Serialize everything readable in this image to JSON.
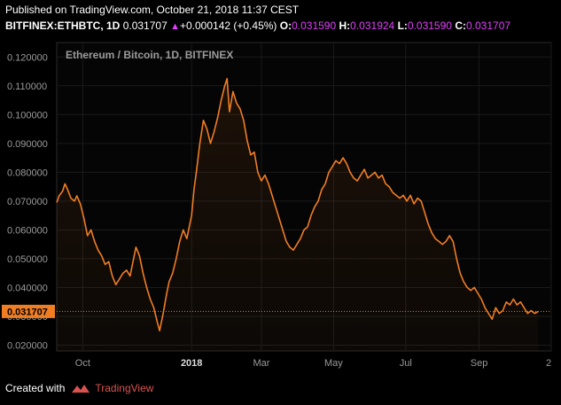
{
  "header": {
    "published": "Published on TradingView.com, October 21, 2018 11:37 CEST",
    "symbol": "BITFINEX:ETHBTC, 1D",
    "last": "0.031707",
    "change": "+0.000142 (+0.45%)",
    "o_label": "O:",
    "o_value": "0.031590",
    "h_label": "H:",
    "h_value": "0.031924",
    "l_label": "L:",
    "l_value": "0.031590",
    "c_label": "C:",
    "c_value": "0.031707"
  },
  "footer": {
    "created_with": "Created with",
    "brand": "TradingView"
  },
  "colors": {
    "line": "#f07d22",
    "accent": "#e040fb",
    "price_tag": "#f07d22",
    "grid": "#1a1a1a",
    "logo": "#d9534f"
  },
  "chart_data": {
    "type": "line",
    "title": "Ethereum / Bitcoin, 1D, BITFINEX",
    "current_price_label": "0.031707",
    "ylim": [
      0.018,
      0.125
    ],
    "y_ticks": [
      "0.020000",
      "0.030000",
      "0.040000",
      "0.050000",
      "0.060000",
      "0.070000",
      "0.080000",
      "0.090000",
      "0.100000",
      "0.110000",
      "0.120000"
    ],
    "x_ticks": [
      {
        "label": "Oct",
        "x": "2017-10-01"
      },
      {
        "label": "2018",
        "x": "2018-01-01",
        "bold": true
      },
      {
        "label": "Mar",
        "x": "2018-03-01"
      },
      {
        "label": "May",
        "x": "2018-05-01"
      },
      {
        "label": "Jul",
        "x": "2018-07-01"
      },
      {
        "label": "Sep",
        "x": "2018-09-01"
      },
      {
        "label": "2",
        "x": "2018-11-01"
      }
    ],
    "xlim": [
      "2017-09-09",
      "2018-11-01"
    ],
    "series": [
      {
        "points": [
          [
            "2017-09-09",
            0.0695
          ],
          [
            "2017-09-11",
            0.0718
          ],
          [
            "2017-09-14",
            0.0735
          ],
          [
            "2017-09-16",
            0.076
          ],
          [
            "2017-09-18",
            0.0742
          ],
          [
            "2017-09-21",
            0.071
          ],
          [
            "2017-09-24",
            0.07
          ],
          [
            "2017-09-26",
            0.0718
          ],
          [
            "2017-09-29",
            0.069
          ],
          [
            "2017-10-02",
            0.064
          ],
          [
            "2017-10-05",
            0.058
          ],
          [
            "2017-10-08",
            0.06
          ],
          [
            "2017-10-11",
            0.056
          ],
          [
            "2017-10-14",
            0.053
          ],
          [
            "2017-10-17",
            0.051
          ],
          [
            "2017-10-20",
            0.048
          ],
          [
            "2017-10-23",
            0.049
          ],
          [
            "2017-10-26",
            0.044
          ],
          [
            "2017-10-29",
            0.041
          ],
          [
            "2017-11-01",
            0.043
          ],
          [
            "2017-11-04",
            0.045
          ],
          [
            "2017-11-07",
            0.046
          ],
          [
            "2017-11-10",
            0.044
          ],
          [
            "2017-11-12",
            0.048
          ],
          [
            "2017-11-15",
            0.054
          ],
          [
            "2017-11-18",
            0.051
          ],
          [
            "2017-11-21",
            0.045
          ],
          [
            "2017-11-24",
            0.04
          ],
          [
            "2017-11-27",
            0.036
          ],
          [
            "2017-11-30",
            0.033
          ],
          [
            "2017-12-03",
            0.028
          ],
          [
            "2017-12-05",
            0.025
          ],
          [
            "2017-12-08",
            0.031
          ],
          [
            "2017-12-11",
            0.038
          ],
          [
            "2017-12-13",
            0.042
          ],
          [
            "2017-12-16",
            0.045
          ],
          [
            "2017-12-19",
            0.05
          ],
          [
            "2017-12-22",
            0.056
          ],
          [
            "2017-12-25",
            0.06
          ],
          [
            "2017-12-28",
            0.057
          ],
          [
            "2018-01-01",
            0.065
          ],
          [
            "2018-01-03",
            0.074
          ],
          [
            "2018-01-05",
            0.08
          ],
          [
            "2018-01-08",
            0.09
          ],
          [
            "2018-01-11",
            0.098
          ],
          [
            "2018-01-14",
            0.095
          ],
          [
            "2018-01-17",
            0.09
          ],
          [
            "2018-01-20",
            0.094
          ],
          [
            "2018-01-23",
            0.099
          ],
          [
            "2018-01-26",
            0.105
          ],
          [
            "2018-01-29",
            0.11
          ],
          [
            "2018-01-31",
            0.1125
          ],
          [
            "2018-02-02",
            0.101
          ],
          [
            "2018-02-05",
            0.108
          ],
          [
            "2018-02-08",
            0.104
          ],
          [
            "2018-02-11",
            0.102
          ],
          [
            "2018-02-14",
            0.098
          ],
          [
            "2018-02-17",
            0.091
          ],
          [
            "2018-02-20",
            0.086
          ],
          [
            "2018-02-23",
            0.087
          ],
          [
            "2018-02-26",
            0.08
          ],
          [
            "2018-03-01",
            0.077
          ],
          [
            "2018-03-04",
            0.079
          ],
          [
            "2018-03-07",
            0.076
          ],
          [
            "2018-03-10",
            0.072
          ],
          [
            "2018-03-13",
            0.068
          ],
          [
            "2018-03-16",
            0.064
          ],
          [
            "2018-03-19",
            0.06
          ],
          [
            "2018-03-22",
            0.056
          ],
          [
            "2018-03-25",
            0.054
          ],
          [
            "2018-03-28",
            0.053
          ],
          [
            "2018-03-31",
            0.055
          ],
          [
            "2018-04-03",
            0.057
          ],
          [
            "2018-04-06",
            0.06
          ],
          [
            "2018-04-09",
            0.061
          ],
          [
            "2018-04-12",
            0.065
          ],
          [
            "2018-04-15",
            0.068
          ],
          [
            "2018-04-18",
            0.07
          ],
          [
            "2018-04-21",
            0.074
          ],
          [
            "2018-04-24",
            0.076
          ],
          [
            "2018-04-27",
            0.08
          ],
          [
            "2018-04-30",
            0.082
          ],
          [
            "2018-05-03",
            0.084
          ],
          [
            "2018-05-06",
            0.083
          ],
          [
            "2018-05-09",
            0.085
          ],
          [
            "2018-05-12",
            0.083
          ],
          [
            "2018-05-15",
            0.08
          ],
          [
            "2018-05-18",
            0.078
          ],
          [
            "2018-05-21",
            0.077
          ],
          [
            "2018-05-24",
            0.079
          ],
          [
            "2018-05-27",
            0.081
          ],
          [
            "2018-05-30",
            0.078
          ],
          [
            "2018-06-02",
            0.079
          ],
          [
            "2018-06-05",
            0.08
          ],
          [
            "2018-06-08",
            0.078
          ],
          [
            "2018-06-11",
            0.079
          ],
          [
            "2018-06-14",
            0.076
          ],
          [
            "2018-06-17",
            0.075
          ],
          [
            "2018-06-20",
            0.073
          ],
          [
            "2018-06-23",
            0.072
          ],
          [
            "2018-06-26",
            0.071
          ],
          [
            "2018-06-29",
            0.072
          ],
          [
            "2018-07-02",
            0.07
          ],
          [
            "2018-07-05",
            0.072
          ],
          [
            "2018-07-08",
            0.069
          ],
          [
            "2018-07-11",
            0.071
          ],
          [
            "2018-07-14",
            0.07
          ],
          [
            "2018-07-17",
            0.066
          ],
          [
            "2018-07-20",
            0.062
          ],
          [
            "2018-07-23",
            0.059
          ],
          [
            "2018-07-26",
            0.057
          ],
          [
            "2018-07-29",
            0.056
          ],
          [
            "2018-08-01",
            0.055
          ],
          [
            "2018-08-04",
            0.056
          ],
          [
            "2018-08-07",
            0.058
          ],
          [
            "2018-08-10",
            0.056
          ],
          [
            "2018-08-13",
            0.05
          ],
          [
            "2018-08-16",
            0.045
          ],
          [
            "2018-08-19",
            0.042
          ],
          [
            "2018-08-22",
            0.04
          ],
          [
            "2018-08-25",
            0.039
          ],
          [
            "2018-08-28",
            0.04
          ],
          [
            "2018-08-31",
            0.038
          ],
          [
            "2018-09-03",
            0.036
          ],
          [
            "2018-09-06",
            0.033
          ],
          [
            "2018-09-09",
            0.031
          ],
          [
            "2018-09-12",
            0.029
          ],
          [
            "2018-09-15",
            0.033
          ],
          [
            "2018-09-18",
            0.031
          ],
          [
            "2018-09-21",
            0.032
          ],
          [
            "2018-09-24",
            0.035
          ],
          [
            "2018-09-27",
            0.034
          ],
          [
            "2018-09-30",
            0.036
          ],
          [
            "2018-10-03",
            0.034
          ],
          [
            "2018-10-06",
            0.035
          ],
          [
            "2018-10-09",
            0.033
          ],
          [
            "2018-10-12",
            0.031
          ],
          [
            "2018-10-15",
            0.032
          ],
          [
            "2018-10-18",
            0.031
          ],
          [
            "2018-10-21",
            0.0317
          ]
        ]
      }
    ]
  }
}
